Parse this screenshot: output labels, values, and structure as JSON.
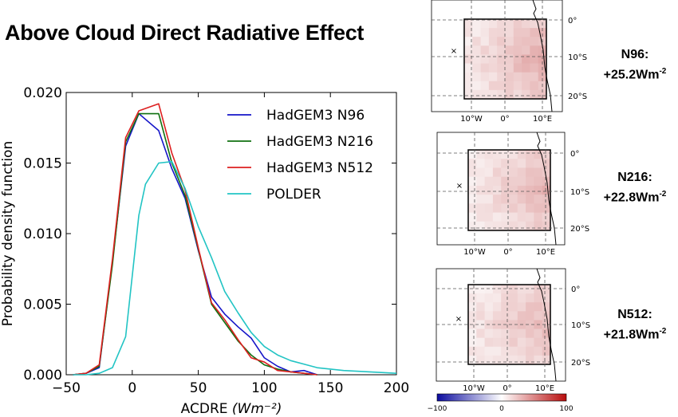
{
  "title": "Above Cloud Direct Radiative Effect",
  "chart_data": {
    "type": "line",
    "xlabel": "ACDRE",
    "xlabel_unit": "(Wm⁻²)",
    "ylabel": "Probability density function",
    "xlim": [
      -50,
      200
    ],
    "ylim": [
      0,
      0.02
    ],
    "x_ticks": [
      "−50",
      "0",
      "50",
      "100",
      "150",
      "200"
    ],
    "x_tick_values": [
      -50,
      0,
      50,
      100,
      150,
      200
    ],
    "y_ticks": [
      "0.000",
      "0.005",
      "0.010",
      "0.015",
      "0.020"
    ],
    "y_tick_values": [
      0,
      0.005,
      0.01,
      0.015,
      0.02
    ],
    "grid": false,
    "legend_position": "top-right",
    "series": [
      {
        "name": "HadGEM3 N96",
        "color": "#1515c8",
        "x": [
          -45,
          -35,
          -25,
          -15,
          -5,
          5,
          20,
          30,
          40,
          50,
          60,
          70,
          80,
          90,
          100,
          110,
          120,
          130,
          140
        ],
        "y": [
          0.0,
          0.0001,
          0.0005,
          0.008,
          0.0162,
          0.0185,
          0.0173,
          0.0146,
          0.0125,
          0.0088,
          0.0055,
          0.0043,
          0.0034,
          0.0026,
          0.0012,
          0.0006,
          0.0002,
          0.0003,
          0.0
        ]
      },
      {
        "name": "HadGEM3 N216",
        "color": "#107010",
        "x": [
          -45,
          -35,
          -25,
          -15,
          -5,
          5,
          20,
          30,
          40,
          50,
          60,
          70,
          80,
          90,
          100,
          110,
          120,
          130,
          140
        ],
        "y": [
          0.0,
          0.0001,
          0.0006,
          0.0078,
          0.0165,
          0.0185,
          0.0185,
          0.015,
          0.0127,
          0.0089,
          0.005,
          0.0037,
          0.0024,
          0.0014,
          0.0007,
          0.0004,
          0.0002,
          0.0001,
          0.0
        ]
      },
      {
        "name": "HadGEM3 N512",
        "color": "#dd2020",
        "x": [
          -45,
          -35,
          -25,
          -15,
          -5,
          5,
          20,
          30,
          40,
          50,
          60,
          70,
          80,
          90,
          100,
          110,
          120,
          130,
          140
        ],
        "y": [
          0.0,
          0.0001,
          0.0007,
          0.0082,
          0.0168,
          0.0187,
          0.0192,
          0.0157,
          0.0131,
          0.009,
          0.0051,
          0.0039,
          0.0025,
          0.0012,
          0.0009,
          0.0003,
          0.0002,
          0.0001,
          0.0
        ]
      },
      {
        "name": "POLDER",
        "color": "#22c4c4",
        "x": [
          -45,
          -35,
          -25,
          -15,
          -5,
          5,
          10,
          20,
          30,
          40,
          50,
          60,
          70,
          80,
          90,
          100,
          110,
          120,
          140,
          160,
          180,
          200
        ],
        "y": [
          0.0,
          0.0,
          0.0001,
          0.0005,
          0.0027,
          0.0113,
          0.0135,
          0.015,
          0.0151,
          0.0132,
          0.0105,
          0.0083,
          0.0059,
          0.0044,
          0.003,
          0.002,
          0.0014,
          0.001,
          0.0005,
          0.0003,
          0.0002,
          0.0001
        ]
      }
    ]
  },
  "maps": [
    {
      "label_title": "N96:",
      "label_value": "+25.2Wm",
      "label_exp": "-2"
    },
    {
      "label_title": "N216:",
      "label_value": "+22.8Wm",
      "label_exp": "-2"
    },
    {
      "label_title": "N512:",
      "label_value": "+21.8Wm",
      "label_exp": "-2"
    }
  ],
  "map_axes": {
    "lat_labels": [
      "0°",
      "10°S",
      "20°S"
    ],
    "lon_labels": [
      "10°W",
      "0°",
      "10°E"
    ]
  },
  "colorbar": {
    "tick_labels": [
      "−100",
      "0",
      "100"
    ],
    "tick_values": [
      -100,
      0,
      100
    ],
    "range": [
      -100,
      100
    ],
    "colors": [
      "#0b0b9e",
      "#ffffff",
      "#b80d0d"
    ]
  }
}
